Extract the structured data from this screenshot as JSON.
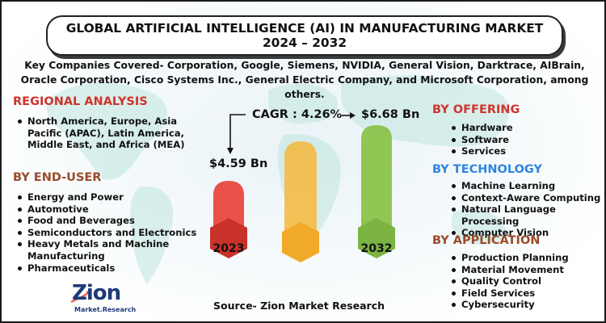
{
  "title": {
    "line1": "GLOBAL ARTIFICIAL INTELLIGENCE (AI) IN MANUFACTURING MARKET",
    "line2": "2024 – 2032"
  },
  "companies_text": "Key Companies Covered- Corporation, Google, Siemens, NVIDIA, General Vision, Darktrace, AIBrain, Oracle Corporation, Cisco Systems Inc., General Electric Company, and Microsoft Corporation, among others.",
  "regional": {
    "heading": "REGIONAL ANALYSIS",
    "items": [
      "North America, Europe, Asia Pacific (APAC), Latin America, Middle East, and Africa (MEA)"
    ]
  },
  "end_user": {
    "heading": "BY END-USER",
    "items": [
      "Energy and Power",
      "Automotive",
      "Food and Beverages",
      "Semiconductors and Electronics",
      "Heavy Metals and Machine Manufacturing",
      "Pharmaceuticals"
    ]
  },
  "offering": {
    "heading": "BY OFFERING",
    "items": [
      "Hardware",
      "Software",
      "Services"
    ]
  },
  "technology": {
    "heading": "BY TECHNOLOGY",
    "items": [
      "Machine Learning",
      "Context-Aware Computing",
      "Natural Language Processing",
      "Computer Vision"
    ]
  },
  "application": {
    "heading": "BY APPLICATION",
    "items": [
      "Production Planning",
      "Material Movement",
      "Quality Control",
      "Field Services",
      "Cybersecurity"
    ]
  },
  "chart": {
    "cagr": "CAGR : 4.26%",
    "start_value": "$4.59 Bn",
    "end_value": "$6.68 Bn",
    "start_year": "2023",
    "end_year": "2032",
    "colors": {
      "red": "#e8483f",
      "yellow": "#f6b73c",
      "green": "#8bc34a"
    }
  },
  "source": "Source- Zion Market Research",
  "logo": {
    "word": "Zion",
    "sub": "Market.Research"
  }
}
